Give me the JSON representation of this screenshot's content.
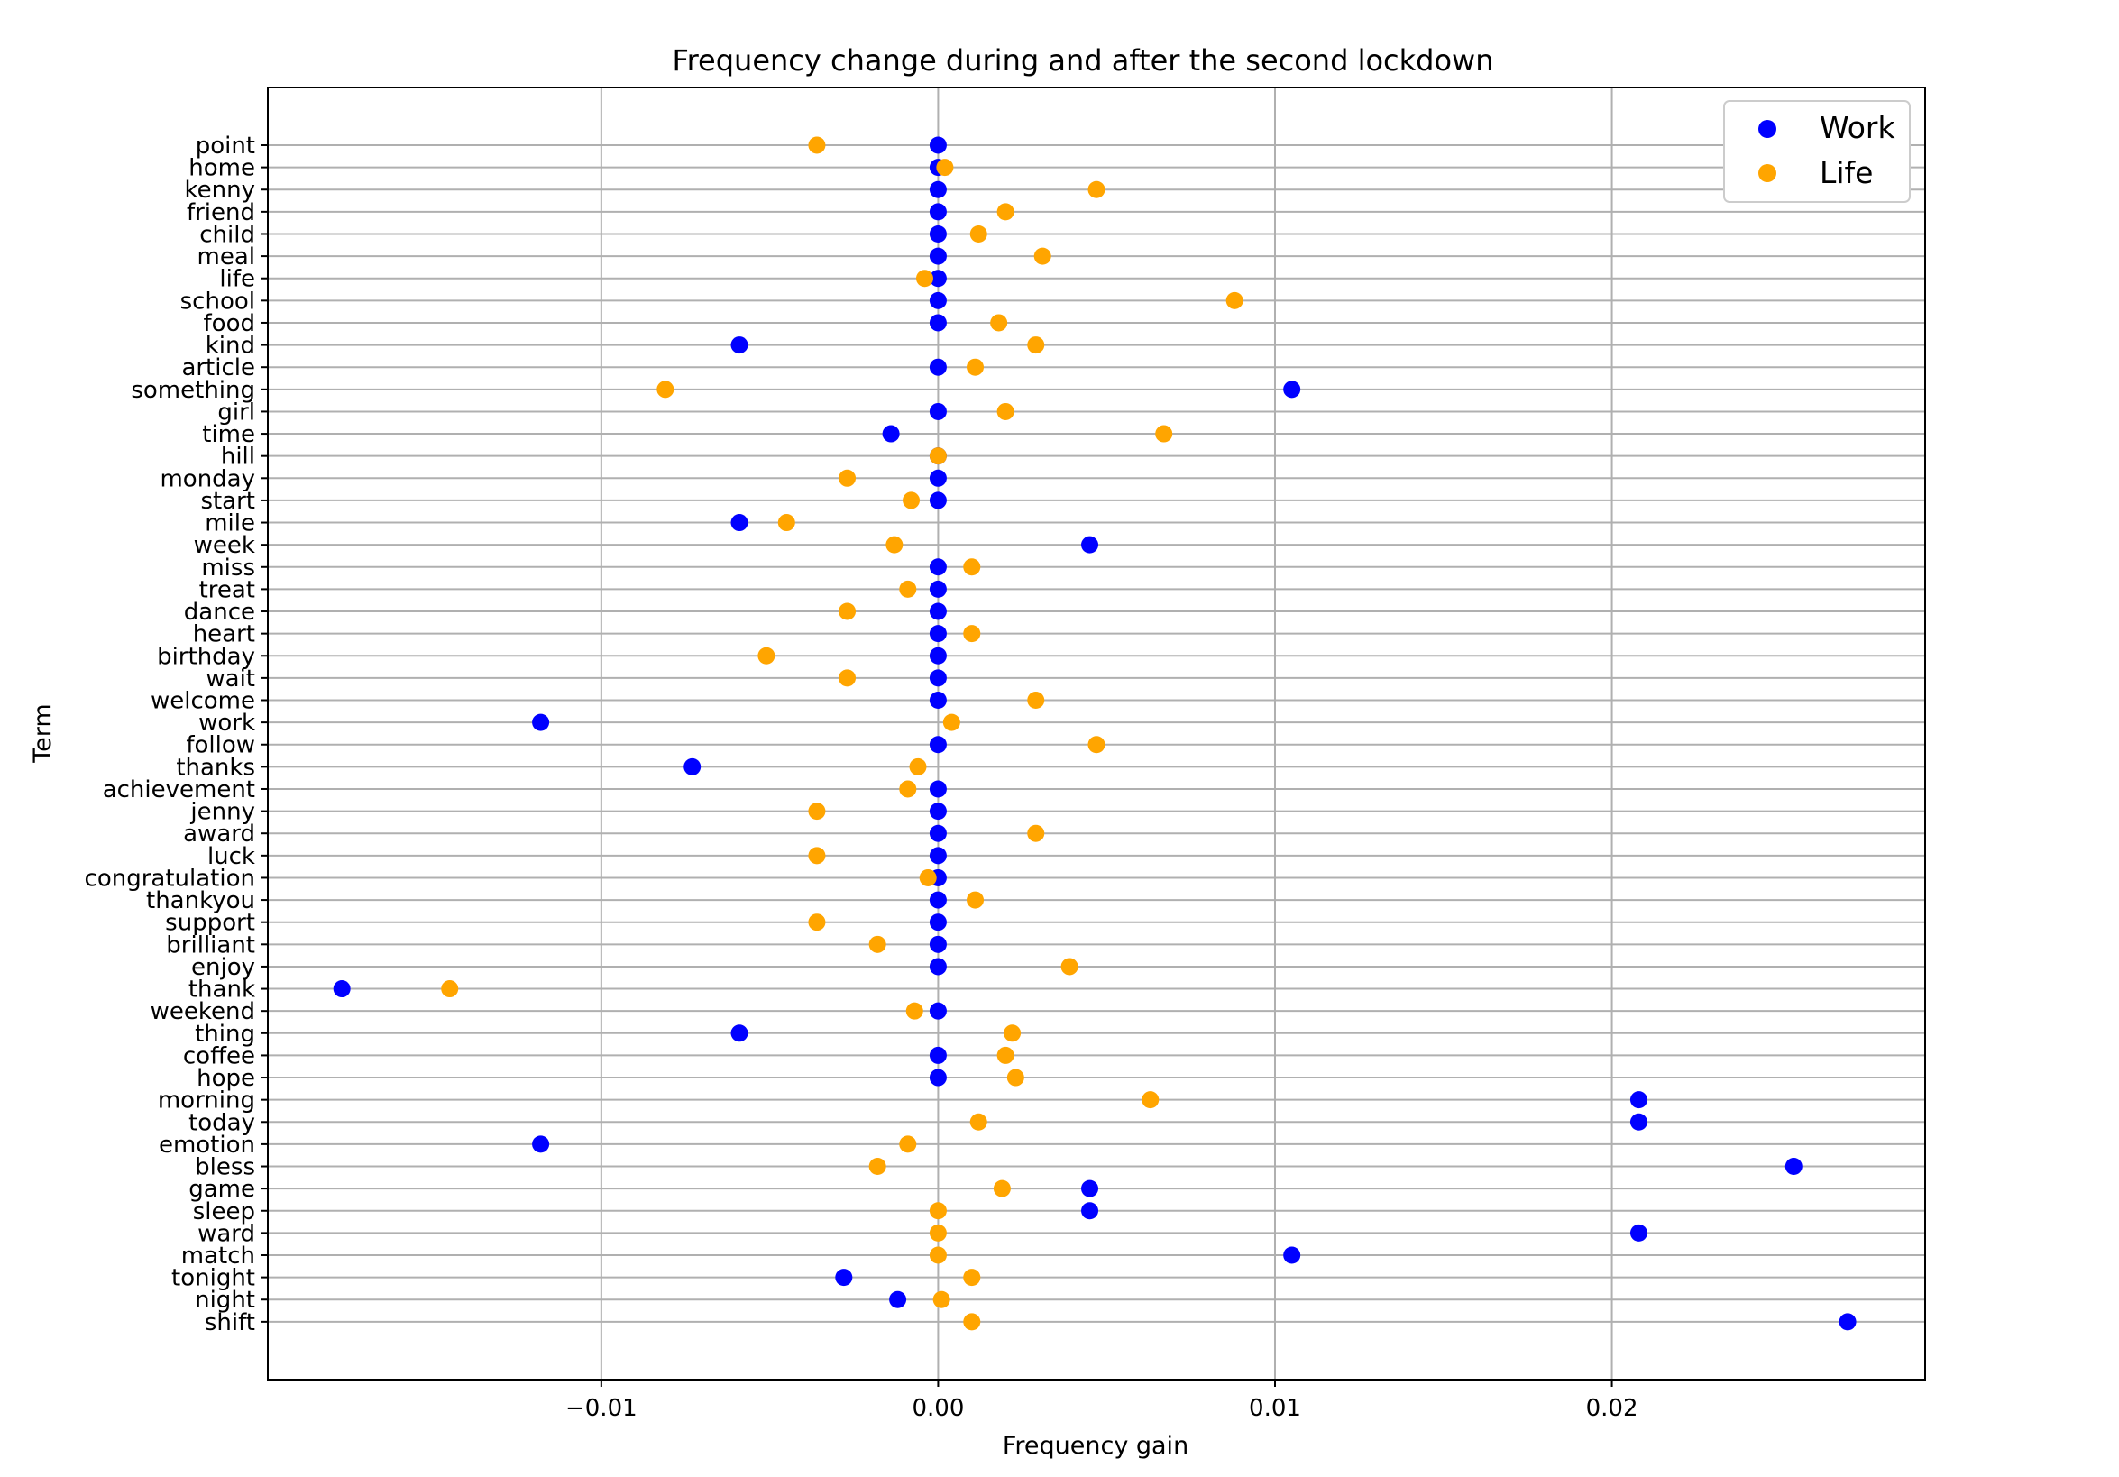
{
  "chart_data": {
    "type": "scatter",
    "title": "Frequency change during and after the second lockdown",
    "xlabel": "Frequency gain",
    "ylabel": "Term",
    "xlim": [
      -0.0199,
      0.0293
    ],
    "xticks": [
      -0.01,
      0.0,
      0.01,
      0.02
    ],
    "xtick_labels": [
      "−0.01",
      "0.00",
      "0.01",
      "0.02"
    ],
    "grid": true,
    "legend_position": "top-right",
    "categories": [
      "point",
      "home",
      "kenny",
      "friend",
      "child",
      "meal",
      "life",
      "school",
      "food",
      "kind",
      "article",
      "something",
      "girl",
      "time",
      "hill",
      "monday",
      "start",
      "mile",
      "week",
      "miss",
      "treat",
      "dance",
      "heart",
      "birthday",
      "wait",
      "welcome",
      "work",
      "follow",
      "thanks",
      "achievement",
      "jenny",
      "award",
      "luck",
      "congratulation",
      "thankyou",
      "support",
      "brilliant",
      "enjoy",
      "thank",
      "weekend",
      "thing",
      "coffee",
      "hope",
      "morning",
      "today",
      "emotion",
      "bless",
      "game",
      "sleep",
      "ward",
      "match",
      "tonight",
      "night",
      "shift"
    ],
    "series": [
      {
        "name": "Work",
        "color": "#0000ff",
        "values": [
          0,
          0,
          0,
          0,
          0,
          0,
          0,
          0,
          0,
          -0.0059,
          0,
          0.0105,
          0,
          -0.0014,
          0,
          0,
          0,
          -0.0059,
          0.0045,
          0,
          0,
          0,
          0,
          0,
          0,
          0,
          -0.0118,
          0,
          -0.0073,
          0,
          0,
          0,
          0,
          0,
          0,
          0,
          0,
          0,
          -0.0177,
          0,
          -0.0059,
          0,
          0,
          0.0208,
          0.0208,
          -0.0118,
          0.0254,
          0.0045,
          0.0045,
          0.0208,
          0.0105,
          -0.0028,
          -0.0012,
          0.027
        ]
      },
      {
        "name": "Life",
        "color": "#ffa500",
        "values": [
          -0.0036,
          0.0002,
          0.0047,
          0.002,
          0.0012,
          0.0031,
          -0.0004,
          0.0088,
          0.0018,
          0.0029,
          0.0011,
          -0.0081,
          0.002,
          0.0067,
          0,
          -0.0027,
          -0.0008,
          -0.0045,
          -0.0013,
          0.001,
          -0.0009,
          -0.0027,
          0.001,
          -0.0051,
          -0.0027,
          0.0029,
          0.0004,
          0.0047,
          -0.0006,
          -0.0009,
          -0.0036,
          0.0029,
          -0.0036,
          -0.0003,
          0.0011,
          -0.0036,
          -0.0018,
          0.0039,
          -0.0145,
          -0.0007,
          0.0022,
          0.002,
          0.0023,
          0.0063,
          0.0012,
          -0.0009,
          -0.0018,
          0.0019,
          0,
          0,
          0,
          0.001,
          0.0001,
          0.001
        ]
      }
    ]
  }
}
